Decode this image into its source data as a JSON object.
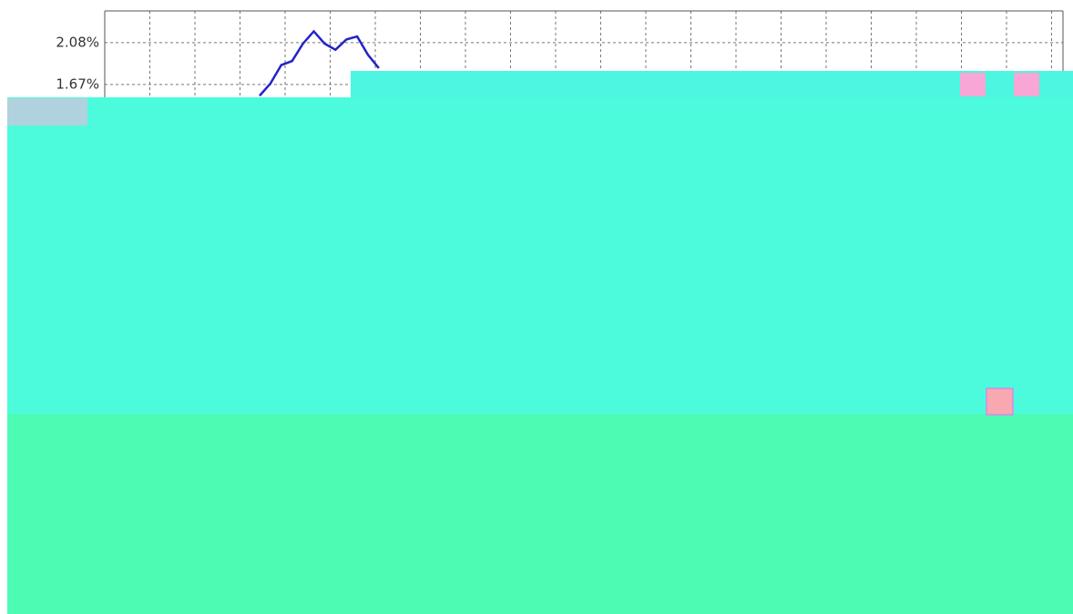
{
  "chart_data": {
    "type": "line",
    "categories": [
      null,
      null,
      null,
      null,
      null,
      null,
      null,
      null,
      null,
      null,
      null,
      null
    ],
    "series": [
      {
        "color": "#2323c8",
        "values": [
          1.56,
          1.68,
          1.86,
          1.9,
          2.07,
          2.19,
          2.07,
          2.01,
          2.11,
          2.14,
          1.96,
          1.83
        ]
      }
    ],
    "ylim": [
      1.5,
      2.39
    ],
    "yticks": [
      {
        "value": 1.67,
        "label": "1.67%"
      },
      {
        "value": 2.08,
        "label": "2.08%"
      }
    ],
    "grid": true
  }
}
